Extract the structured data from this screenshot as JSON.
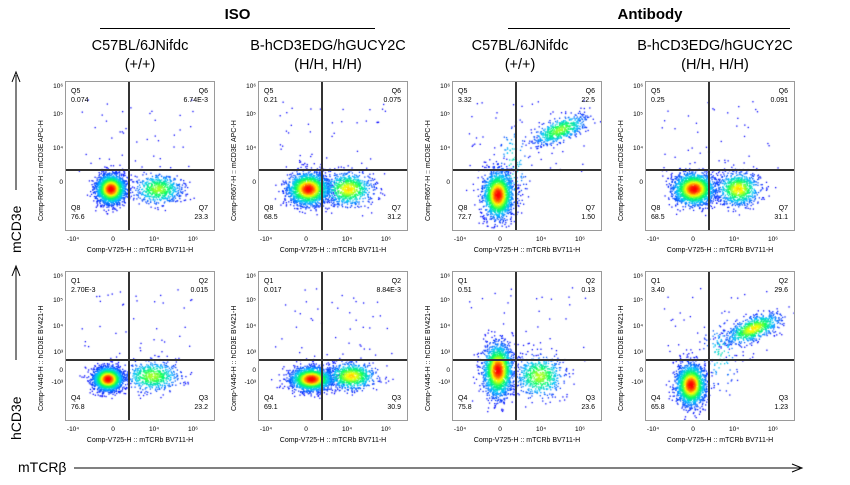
{
  "groups": [
    "ISO",
    "Antibody"
  ],
  "columns": [
    {
      "line1": "C57BL/6JNifdc",
      "line2": "(+/+)"
    },
    {
      "line1": "B-hCD3EDG/hGUCY2C",
      "line2": "(H/H, H/H)"
    },
    {
      "line1": "C57BL/6JNifdc",
      "line2": "(+/+)"
    },
    {
      "line1": "B-hCD3EDG/hGUCY2C",
      "line2": "(H/H, H/H)"
    }
  ],
  "axis_titles": {
    "y_top": "mCD3e",
    "y_bottom": "hCD3e",
    "x": "mTCRβ"
  },
  "chart_data": {
    "type": "scatter",
    "xlabel": "Comp-V725-H :: mTCRb BV711-H",
    "x_ticks": [
      "-10⁴",
      "0",
      "10⁴",
      "10⁶"
    ],
    "rows": [
      {
        "ylabel": "Comp-R667-H :: mCD3E APC-H",
        "y_ticks": [
          "10⁶",
          "10⁵",
          "10⁴",
          "0"
        ],
        "quadrant_names": [
          "Q5",
          "Q6",
          "Q8",
          "Q7"
        ],
        "panels": [
          {
            "values": [
              "0.074",
              "6.74E-3",
              "76.6",
              "23.3"
            ]
          },
          {
            "values": [
              "0.21",
              "0.075",
              "68.5",
              "31.2"
            ]
          },
          {
            "values": [
              "3.32",
              "22.5",
              "72.7",
              "1.50"
            ]
          },
          {
            "values": [
              "0.25",
              "0.091",
              "68.5",
              "31.1"
            ]
          }
        ]
      },
      {
        "ylabel": "Comp-V445-H :: hCD3E BV421-H",
        "y_ticks": [
          "10⁶",
          "10⁵",
          "10⁴",
          "10³",
          "0",
          "-10³"
        ],
        "quadrant_names": [
          "Q1",
          "Q2",
          "Q4",
          "Q3"
        ],
        "panels": [
          {
            "values": [
              "2.70E-3",
              "0.015",
              "76.8",
              "23.2"
            ]
          },
          {
            "values": [
              "0.017",
              "8.84E-3",
              "69.1",
              "30.9"
            ]
          },
          {
            "values": [
              "0.51",
              "0.13",
              "75.8",
              "23.6"
            ]
          },
          {
            "values": [
              "3.40",
              "29.6",
              "65.8",
              "1.23"
            ]
          }
        ]
      }
    ],
    "colormap": [
      "#0000ff",
      "#00c0ff",
      "#00ff60",
      "#ffff00",
      "#ff0000"
    ]
  }
}
